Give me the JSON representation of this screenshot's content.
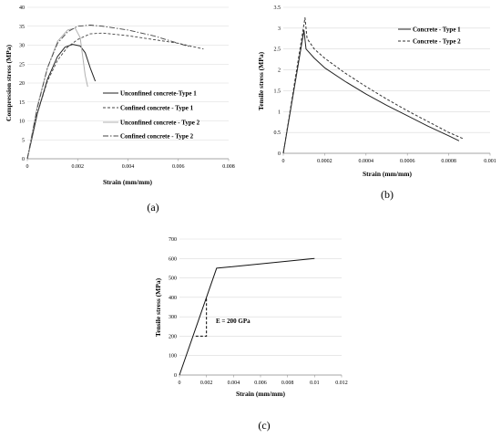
{
  "chart_data": [
    {
      "type": "line",
      "panel_label": "(a)",
      "xlabel": "Strain (mm/mm)",
      "ylabel": "Compression stress (MPa)",
      "xlim": [
        0,
        0.008
      ],
      "ylim": [
        0,
        40
      ],
      "xticks": [
        "0",
        "0.002",
        "0.004",
        "0.006",
        "0.008"
      ],
      "yticks": [
        "0",
        "5",
        "10",
        "15",
        "20",
        "25",
        "30",
        "35",
        "40"
      ],
      "xtick_values": [
        0,
        0.002,
        0.004,
        0.006,
        0.008
      ],
      "ytick_values": [
        0,
        5,
        10,
        15,
        20,
        25,
        30,
        35,
        40
      ],
      "grid": "horizontal",
      "legend_position": "right",
      "series": [
        {
          "name": "Unconfined concrete-Type 1",
          "color": "#222222",
          "dash": "",
          "width": 1.0,
          "x": [
            0,
            0.0004,
            0.0008,
            0.0012,
            0.0015,
            0.0018,
            0.0021,
            0.0023,
            0.0025,
            0.0027
          ],
          "y": [
            0,
            12,
            21,
            27,
            29.5,
            30.2,
            29.8,
            28,
            24,
            20.5
          ]
        },
        {
          "name": "Confined concrete - Type 1",
          "color": "#444444",
          "dash": "3,2",
          "width": 0.9,
          "x": [
            0,
            0.0004,
            0.0008,
            0.0012,
            0.0016,
            0.002,
            0.0025,
            0.003,
            0.004,
            0.005,
            0.006,
            0.007
          ],
          "y": [
            0,
            12,
            20.5,
            26,
            29.5,
            31.5,
            33,
            33.2,
            32.5,
            31.5,
            30.5,
            29
          ]
        },
        {
          "name": "Unconfined concrete - Type 2",
          "color": "#b0b0b0",
          "dash": "",
          "width": 1.0,
          "x": [
            0,
            0.0004,
            0.0008,
            0.0012,
            0.0016,
            0.0019,
            0.0021,
            0.0022,
            0.0023,
            0.0024
          ],
          "y": [
            0,
            14,
            24,
            31,
            34,
            34.5,
            32,
            27,
            22,
            19
          ]
        },
        {
          "name": "Confined concrete - Type 2",
          "color": "#444444",
          "dash": "6,2,1.5,2",
          "width": 0.9,
          "x": [
            0,
            0.0004,
            0.0008,
            0.0012,
            0.0016,
            0.002,
            0.0025,
            0.003,
            0.004,
            0.005,
            0.006,
            0.0065
          ],
          "y": [
            0,
            13.5,
            24,
            30.5,
            33.5,
            35,
            35.3,
            35,
            34,
            32.5,
            30.5,
            29.5
          ]
        }
      ]
    },
    {
      "type": "line",
      "panel_label": "(b)",
      "xlabel": "Strain (mm/mm)",
      "ylabel": "Tensile stress (MPa)",
      "xlim": [
        0,
        0.001
      ],
      "ylim": [
        0,
        3.5
      ],
      "xticks": [
        "0",
        "0.0002",
        "0.0004",
        "0.0006",
        "0.0008",
        "0.001"
      ],
      "yticks": [
        "0",
        "0.5",
        "1",
        "1.5",
        "2",
        "2.5",
        "3",
        "3.5"
      ],
      "xtick_values": [
        0,
        0.0002,
        0.0004,
        0.0006,
        0.0008,
        0.001
      ],
      "ytick_values": [
        0,
        0.5,
        1,
        1.5,
        2,
        2.5,
        3,
        3.5
      ],
      "grid": "horizontal",
      "legend_position": "top-right",
      "series": [
        {
          "name": "Concrete - Type 1",
          "color": "#222222",
          "dash": "",
          "width": 1.0,
          "x": [
            0,
            0.0001,
            0.00011,
            0.00015,
            0.0002,
            0.0003,
            0.0004,
            0.0005,
            0.0006,
            0.0007,
            0.0008,
            0.00085
          ],
          "y": [
            0,
            2.95,
            2.5,
            2.28,
            2.05,
            1.72,
            1.42,
            1.15,
            0.9,
            0.65,
            0.42,
            0.3
          ]
        },
        {
          "name": "Concrete - Type 2",
          "color": "#333333",
          "dash": "3,2",
          "width": 1.0,
          "x": [
            0,
            0.000105,
            0.000115,
            0.00015,
            0.0002,
            0.0003,
            0.0004,
            0.0005,
            0.0006,
            0.0007,
            0.0008,
            0.00087
          ],
          "y": [
            0,
            3.25,
            2.75,
            2.5,
            2.28,
            1.92,
            1.6,
            1.3,
            1.02,
            0.76,
            0.5,
            0.35
          ]
        }
      ]
    },
    {
      "type": "line",
      "panel_label": "(c)",
      "xlabel": "Strain (mm/mm)",
      "ylabel": "Tensile stress (MPa)",
      "xlim": [
        0,
        0.012
      ],
      "ylim": [
        0,
        700
      ],
      "xticks": [
        "0",
        "0.002",
        "0.004",
        "0.006",
        "0.008",
        "0.01",
        "0.012"
      ],
      "yticks": [
        "0",
        "100",
        "200",
        "300",
        "400",
        "500",
        "600",
        "700"
      ],
      "xtick_values": [
        0,
        0.002,
        0.004,
        0.006,
        0.008,
        0.01,
        0.012
      ],
      "ytick_values": [
        0,
        100,
        200,
        300,
        400,
        500,
        600,
        700
      ],
      "grid": "horizontal",
      "annotation": "E = 200 GPa",
      "slope_marker": {
        "x": [
          0.0012,
          0.002,
          0.002
        ],
        "y": [
          200,
          200,
          400
        ]
      },
      "series": [
        {
          "color": "#111111",
          "dash": "",
          "width": 1.0,
          "x": [
            0,
            0.00275,
            0.01
          ],
          "y": [
            0,
            550,
            600
          ]
        }
      ]
    }
  ]
}
